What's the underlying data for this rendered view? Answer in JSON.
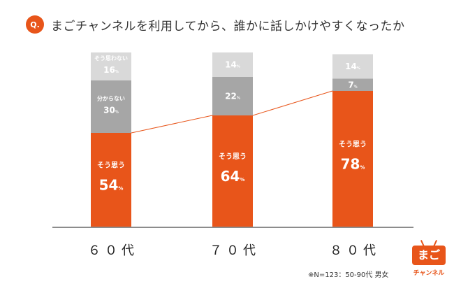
{
  "header": {
    "badge": "Q.",
    "question": "まごチャンネルを利用してから、誰かに話しかけやすくなったか"
  },
  "footnote": "※N=123：50-90代 男女",
  "logo": {
    "main": "まご",
    "sub": "チャンネル"
  },
  "colors": {
    "yes": "#e8551a",
    "neutral": "#a6a6a6",
    "no": "#d9d9d9",
    "axis": "#8c8c8c",
    "text": "#333333"
  },
  "chart_data": {
    "type": "bar",
    "stacked": true,
    "categories": [
      "６０代",
      "７０代",
      "８０代"
    ],
    "series": [
      {
        "name": "そう思う",
        "values": [
          54,
          64,
          78
        ]
      },
      {
        "name": "分からない",
        "values": [
          30,
          22,
          7
        ]
      },
      {
        "name": "そう思わない",
        "values": [
          16,
          14,
          14
        ]
      }
    ],
    "unit": "%",
    "ylim": [
      0,
      100
    ],
    "grid": false,
    "legend": "none",
    "connector_line_on": "そう思う"
  }
}
